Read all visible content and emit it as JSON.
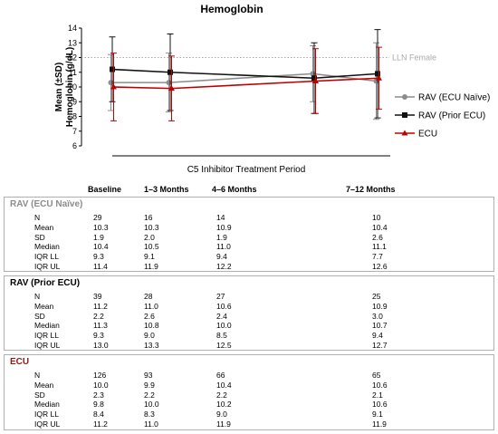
{
  "chart_data": {
    "type": "line",
    "title": "Hemoglobin",
    "ylabel": [
      "Mean (±SD)",
      "Hemoglobin (g/dL)"
    ],
    "xlabel": "C5 Inhibitor Treatment Period",
    "ylim": [
      6,
      14
    ],
    "yticks": [
      6,
      7,
      8,
      9,
      10,
      11,
      12,
      13,
      14
    ],
    "categories": [
      "Baseline",
      "1–3 Months",
      "4–6 Months",
      "7–12 Months"
    ],
    "reference_line": {
      "label": "LLN Female",
      "value": 12
    },
    "legend_position": "right",
    "series": [
      {
        "name": "RAV (ECU Naïve)",
        "color": "#8c8c8c",
        "marker": "circle",
        "mean": [
          10.3,
          10.3,
          10.9,
          10.4
        ],
        "sd": [
          1.9,
          2.0,
          1.9,
          2.6
        ]
      },
      {
        "name": "RAV (Prior ECU)",
        "color": "#111111",
        "marker": "square",
        "mean": [
          11.2,
          11.0,
          10.6,
          10.9
        ],
        "sd": [
          2.2,
          2.6,
          2.4,
          3.0
        ]
      },
      {
        "name": "ECU",
        "color": "#c00000",
        "marker": "triangle",
        "mean": [
          10.0,
          9.9,
          10.4,
          10.6
        ],
        "sd": [
          2.3,
          2.2,
          2.2,
          2.1
        ]
      }
    ]
  },
  "table": {
    "columns": [
      "Baseline",
      "1–3 Months",
      "4–6 Months",
      "7–12 Months"
    ],
    "groups": [
      {
        "title": "RAV (ECU Naïve)",
        "title_color": "#8c8c8c",
        "rows": [
          {
            "stat": "N",
            "values": [
              "29",
              "16",
              "14",
              "10"
            ]
          },
          {
            "stat": "Mean",
            "values": [
              "10.3",
              "10.3",
              "10.9",
              "10.4"
            ]
          },
          {
            "stat": "SD",
            "values": [
              "1.9",
              "2.0",
              "1.9",
              "2.6"
            ]
          },
          {
            "stat": "Median",
            "values": [
              "10.4",
              "10.5",
              "11.0",
              "11.1"
            ]
          },
          {
            "stat": "IQR LL",
            "values": [
              "9.3",
              "9.1",
              "9.4",
              "7.7"
            ]
          },
          {
            "stat": "IQR UL",
            "values": [
              "11.4",
              "11.9",
              "12.2",
              "12.6"
            ]
          }
        ]
      },
      {
        "title": "RAV (Prior ECU)",
        "title_color": "#000000",
        "rows": [
          {
            "stat": "N",
            "values": [
              "39",
              "28",
              "27",
              "25"
            ]
          },
          {
            "stat": "Mean",
            "values": [
              "11.2",
              "11.0",
              "10.6",
              "10.9"
            ]
          },
          {
            "stat": "SD",
            "values": [
              "2.2",
              "2.6",
              "2.4",
              "3.0"
            ]
          },
          {
            "stat": "Median",
            "values": [
              "11.3",
              "10.8",
              "10.0",
              "10.7"
            ]
          },
          {
            "stat": "IQR LL",
            "values": [
              "9.3",
              "9.0",
              "8.5",
              "9.4"
            ]
          },
          {
            "stat": "IQR UL",
            "values": [
              "13.0",
              "13.3",
              "12.5",
              "12.7"
            ]
          }
        ]
      },
      {
        "title": "ECU",
        "title_color": "#8b1a1a",
        "rows": [
          {
            "stat": "N",
            "values": [
              "126",
              "93",
              "66",
              "65"
            ]
          },
          {
            "stat": "Mean",
            "values": [
              "10.0",
              "9.9",
              "10.4",
              "10.6"
            ]
          },
          {
            "stat": "SD",
            "values": [
              "2.3",
              "2.2",
              "2.2",
              "2.1"
            ]
          },
          {
            "stat": "Median",
            "values": [
              "9.8",
              "10.0",
              "10.2",
              "10.6"
            ]
          },
          {
            "stat": "IQR LL",
            "values": [
              "8.4",
              "8.3",
              "9.0",
              "9.1"
            ]
          },
          {
            "stat": "IQR UL",
            "values": [
              "11.2",
              "11.0",
              "11.9",
              "11.9"
            ]
          }
        ]
      }
    ]
  }
}
